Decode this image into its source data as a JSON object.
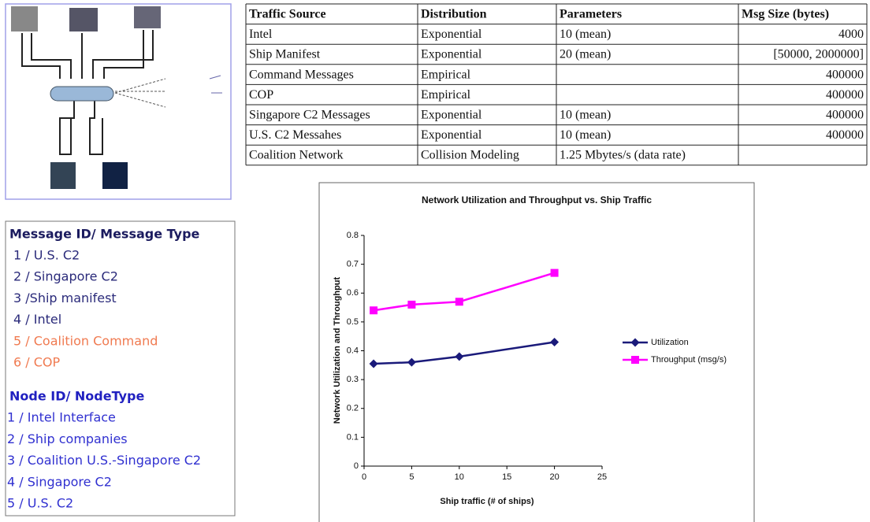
{
  "table": {
    "header": [
      "Traffic Source",
      "Distribution",
      "Parameters",
      "Msg Size (bytes)"
    ],
    "rows": [
      [
        "Intel",
        "Exponential",
        "10 (mean)",
        "4000"
      ],
      [
        "Ship Manifest",
        "Exponential",
        "20 (mean)",
        "[50000, 2000000]"
      ],
      [
        "Command Messages",
        "Empirical",
        null,
        "400000"
      ],
      [
        "COP",
        "Empirical",
        null,
        "400000"
      ],
      [
        "Singapore C2 Messages",
        "Exponential",
        "10 (mean)",
        "400000"
      ],
      [
        "U.S. C2 Messahes",
        "Exponential",
        "10 (mean)",
        "400000"
      ],
      [
        "Coalition Network",
        "Collision Modeling",
        "1.25 Mbytes/s (data rate)",
        null
      ]
    ]
  },
  "legend_box": {
    "sections": [
      {
        "title": "Message ID/ Message Type",
        "color": "#1a1a5e",
        "items": [
          {
            "text": "1 / U.S. C2",
            "color": "#2a2a7a"
          },
          {
            "text": "2 / Singapore C2",
            "color": "#2a2a7a"
          },
          {
            "text": "3 /Ship manifest",
            "color": "#2a2a7a"
          },
          {
            "text": "4 / Intel",
            "color": "#2a2a7a"
          },
          {
            "text": "5 / Coalition Command",
            "color": "#f07a50"
          },
          {
            "text": "6 / COP",
            "color": "#f07a50"
          }
        ]
      },
      {
        "title": "Node ID/ NodeType",
        "color": "#2020c0",
        "items": [
          {
            "text": "1 / Intel Interface",
            "color": "#3030d0"
          },
          {
            "text": "2 / Ship companies",
            "color": "#3030d0"
          },
          {
            "text": "3 / Coalition U.S.-Singapore C2",
            "color": "#3030d0"
          },
          {
            "text": "4 / Singapore C2",
            "color": "#3030d0"
          },
          {
            "text": "5 / U.S. C2",
            "color": "#3030d0"
          }
        ]
      }
    ]
  },
  "chart_data": {
    "type": "line",
    "title": "Network Utilization and Throughput vs. Ship Traffic",
    "x_label": "Ship traffic (# of ships)",
    "y_label": "Network Utilization and Throughput",
    "x": [
      1,
      5,
      10,
      20
    ],
    "series": [
      {
        "name": "Utilization",
        "color": "#1a1a7a",
        "marker": "diamond",
        "values": [
          0.355,
          0.36,
          0.38,
          0.43
        ]
      },
      {
        "name": "Throughput (msg/s)",
        "color": "#ff00ff",
        "marker": "square",
        "values": [
          0.54,
          0.56,
          0.57,
          0.67
        ]
      }
    ],
    "xlim": [
      0,
      25
    ],
    "xticks": [
      0,
      5,
      10,
      15,
      20,
      25
    ],
    "ylim": [
      0,
      0.8
    ],
    "yticks": [
      0,
      0.1,
      0.2,
      0.3,
      0.4,
      0.5,
      0.6,
      0.7,
      0.8
    ],
    "legend": "right"
  }
}
